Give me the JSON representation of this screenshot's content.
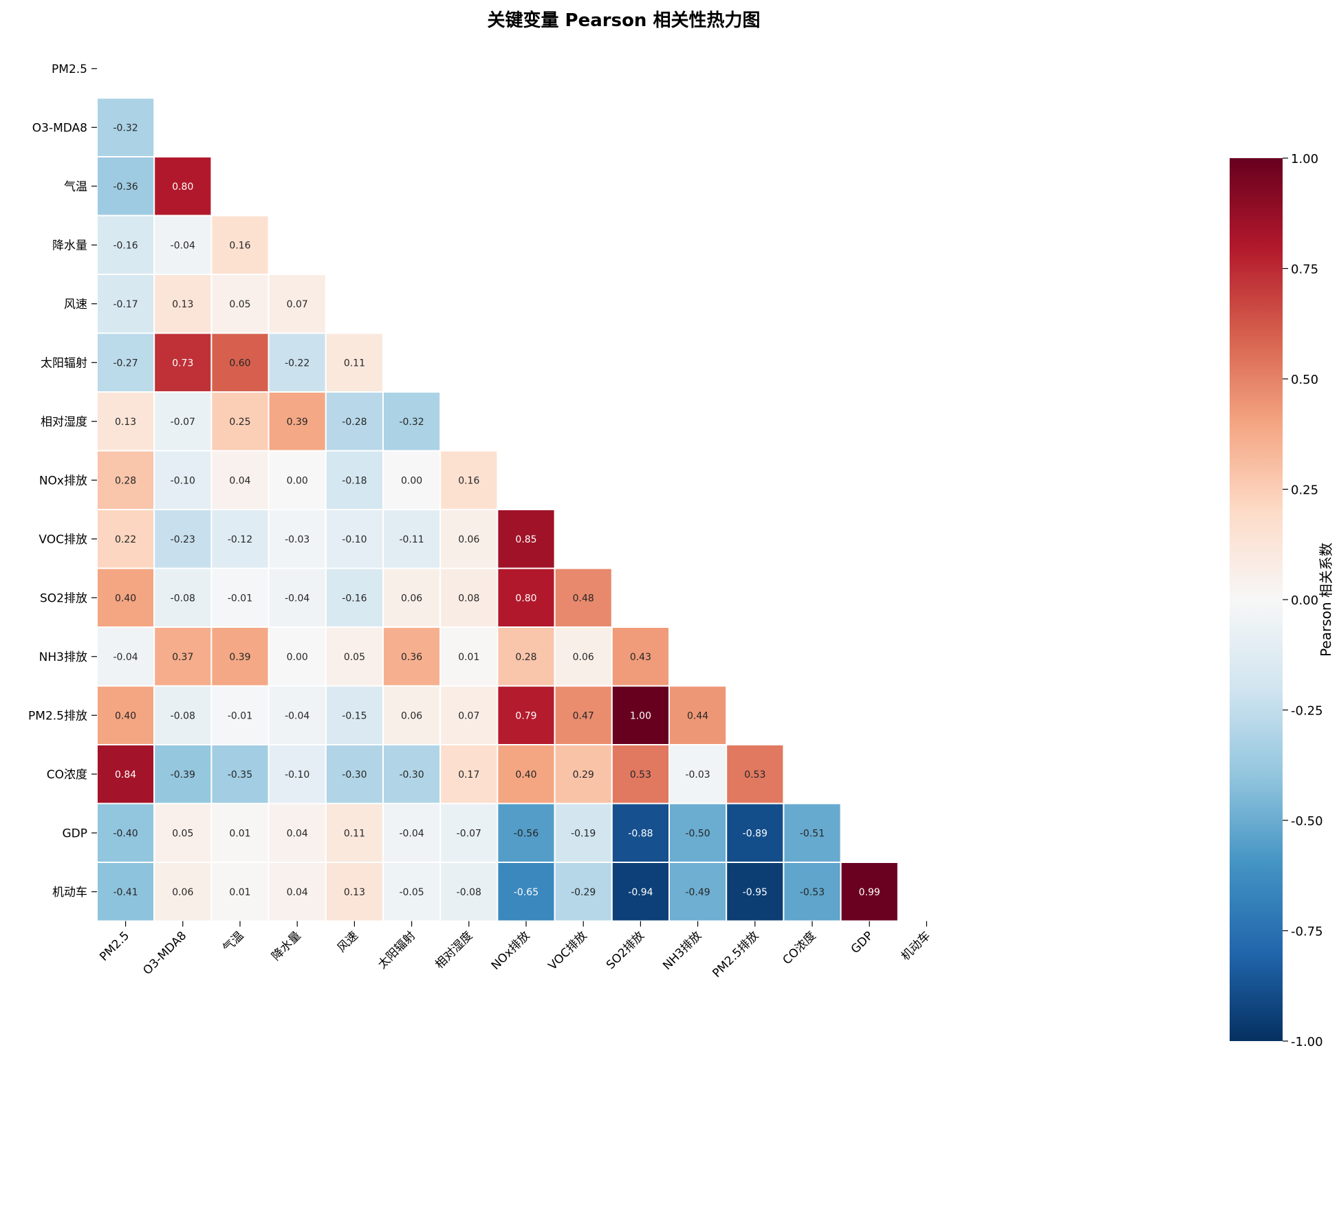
{
  "chart_data": {
    "type": "heatmap",
    "title": "关键变量 Pearson 相关性热力图",
    "variables": [
      "PM2.5",
      "O3-MDA8",
      "气温",
      "降水量",
      "风速",
      "太阳辐射",
      "相对湿度",
      "NOx排放",
      "VOC排放",
      "SO2排放",
      "NH3排放",
      "PM2.5排放",
      "CO浓度",
      "GDP",
      "机动车"
    ],
    "matrix": [
      [],
      [
        -0.32
      ],
      [
        -0.36,
        0.8
      ],
      [
        -0.16,
        -0.04,
        0.16
      ],
      [
        -0.17,
        0.13,
        0.05,
        0.07
      ],
      [
        -0.27,
        0.73,
        0.6,
        -0.22,
        0.11
      ],
      [
        0.13,
        -0.07,
        0.25,
        0.39,
        -0.28,
        -0.32
      ],
      [
        0.28,
        -0.1,
        0.04,
        0.0,
        -0.18,
        0.0,
        0.16
      ],
      [
        0.22,
        -0.23,
        -0.12,
        -0.03,
        -0.1,
        -0.11,
        0.06,
        0.85
      ],
      [
        0.4,
        -0.08,
        -0.01,
        -0.04,
        -0.16,
        0.06,
        0.08,
        0.8,
        0.48
      ],
      [
        -0.04,
        0.37,
        0.39,
        0.0,
        0.05,
        0.36,
        0.01,
        0.28,
        0.06,
        0.43
      ],
      [
        0.4,
        -0.08,
        -0.01,
        -0.04,
        -0.15,
        0.06,
        0.07,
        0.79,
        0.47,
        1.0,
        0.44
      ],
      [
        0.84,
        -0.39,
        -0.35,
        -0.1,
        -0.3,
        -0.3,
        0.17,
        0.4,
        0.29,
        0.53,
        -0.03,
        0.53
      ],
      [
        -0.4,
        0.05,
        0.01,
        0.04,
        0.11,
        -0.04,
        -0.07,
        -0.56,
        -0.19,
        -0.88,
        -0.5,
        -0.89,
        -0.51
      ],
      [
        -0.41,
        0.06,
        0.01,
        0.04,
        0.13,
        -0.05,
        -0.08,
        -0.65,
        -0.29,
        -0.94,
        -0.49,
        -0.95,
        -0.53,
        0.99
      ]
    ],
    "mask": "upper-triangle-including-diagonal",
    "colormap": "RdBu_r",
    "vmin": -1.0,
    "vmax": 1.0,
    "colorbar": {
      "label": "Pearson 相关系数",
      "ticks": [
        "1.00",
        "0.75",
        "0.50",
        "0.25",
        "0.00",
        "-0.25",
        "-0.50",
        "-0.75",
        "-1.00"
      ],
      "tick_values": [
        1.0,
        0.75,
        0.5,
        0.25,
        0.0,
        -0.25,
        -0.5,
        -0.75,
        -1.0
      ]
    }
  }
}
